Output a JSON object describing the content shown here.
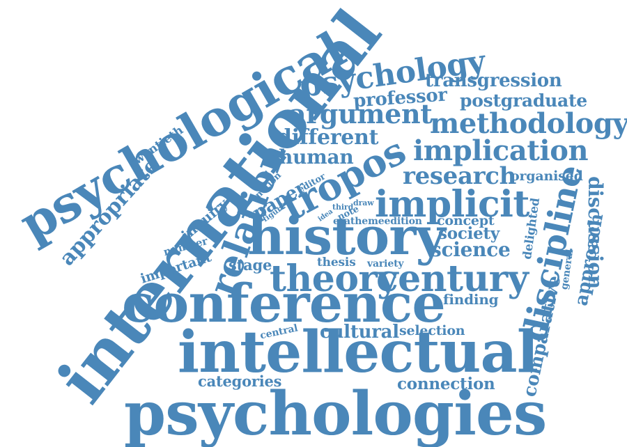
{
  "word_cloud": {
    "color": "#4a87b9",
    "words": [
      {
        "text": "psychological"
      },
      {
        "text": "international"
      },
      {
        "text": "psychology"
      },
      {
        "text": "transgression"
      },
      {
        "text": "professor"
      },
      {
        "text": "postgraduate"
      },
      {
        "text": "argument"
      },
      {
        "text": "methodology"
      },
      {
        "text": "twentieth"
      },
      {
        "text": "different"
      },
      {
        "text": "implication"
      },
      {
        "text": "appropriate"
      },
      {
        "text": "relation"
      },
      {
        "text": "human"
      },
      {
        "text": "tropos"
      },
      {
        "text": "research"
      },
      {
        "text": "organised"
      },
      {
        "text": "notion"
      },
      {
        "text": "editor"
      },
      {
        "text": "paper"
      },
      {
        "text": "implicit"
      },
      {
        "text": "discipline"
      },
      {
        "text": "discussion"
      },
      {
        "text": "inquiry"
      },
      {
        "text": "figure"
      },
      {
        "text": "idea"
      },
      {
        "text": "third"
      },
      {
        "text": "draw"
      },
      {
        "text": "note"
      },
      {
        "text": "erathemeedition"
      },
      {
        "text": "concept"
      },
      {
        "text": "approach"
      },
      {
        "text": "delighted"
      },
      {
        "text": "history"
      },
      {
        "text": "society"
      },
      {
        "text": "general"
      },
      {
        "text": "number"
      },
      {
        "text": "science"
      },
      {
        "text": "important"
      },
      {
        "text": "stage"
      },
      {
        "text": "thesis"
      },
      {
        "text": "variety"
      },
      {
        "text": "theory"
      },
      {
        "text": "century"
      },
      {
        "text": "comparative"
      },
      {
        "text": "conference"
      },
      {
        "text": "finding"
      },
      {
        "text": "central"
      },
      {
        "text": "cultural"
      },
      {
        "text": "selection"
      },
      {
        "text": "intellectual"
      },
      {
        "text": "categories"
      },
      {
        "text": "connection"
      },
      {
        "text": "psychologies"
      }
    ]
  }
}
